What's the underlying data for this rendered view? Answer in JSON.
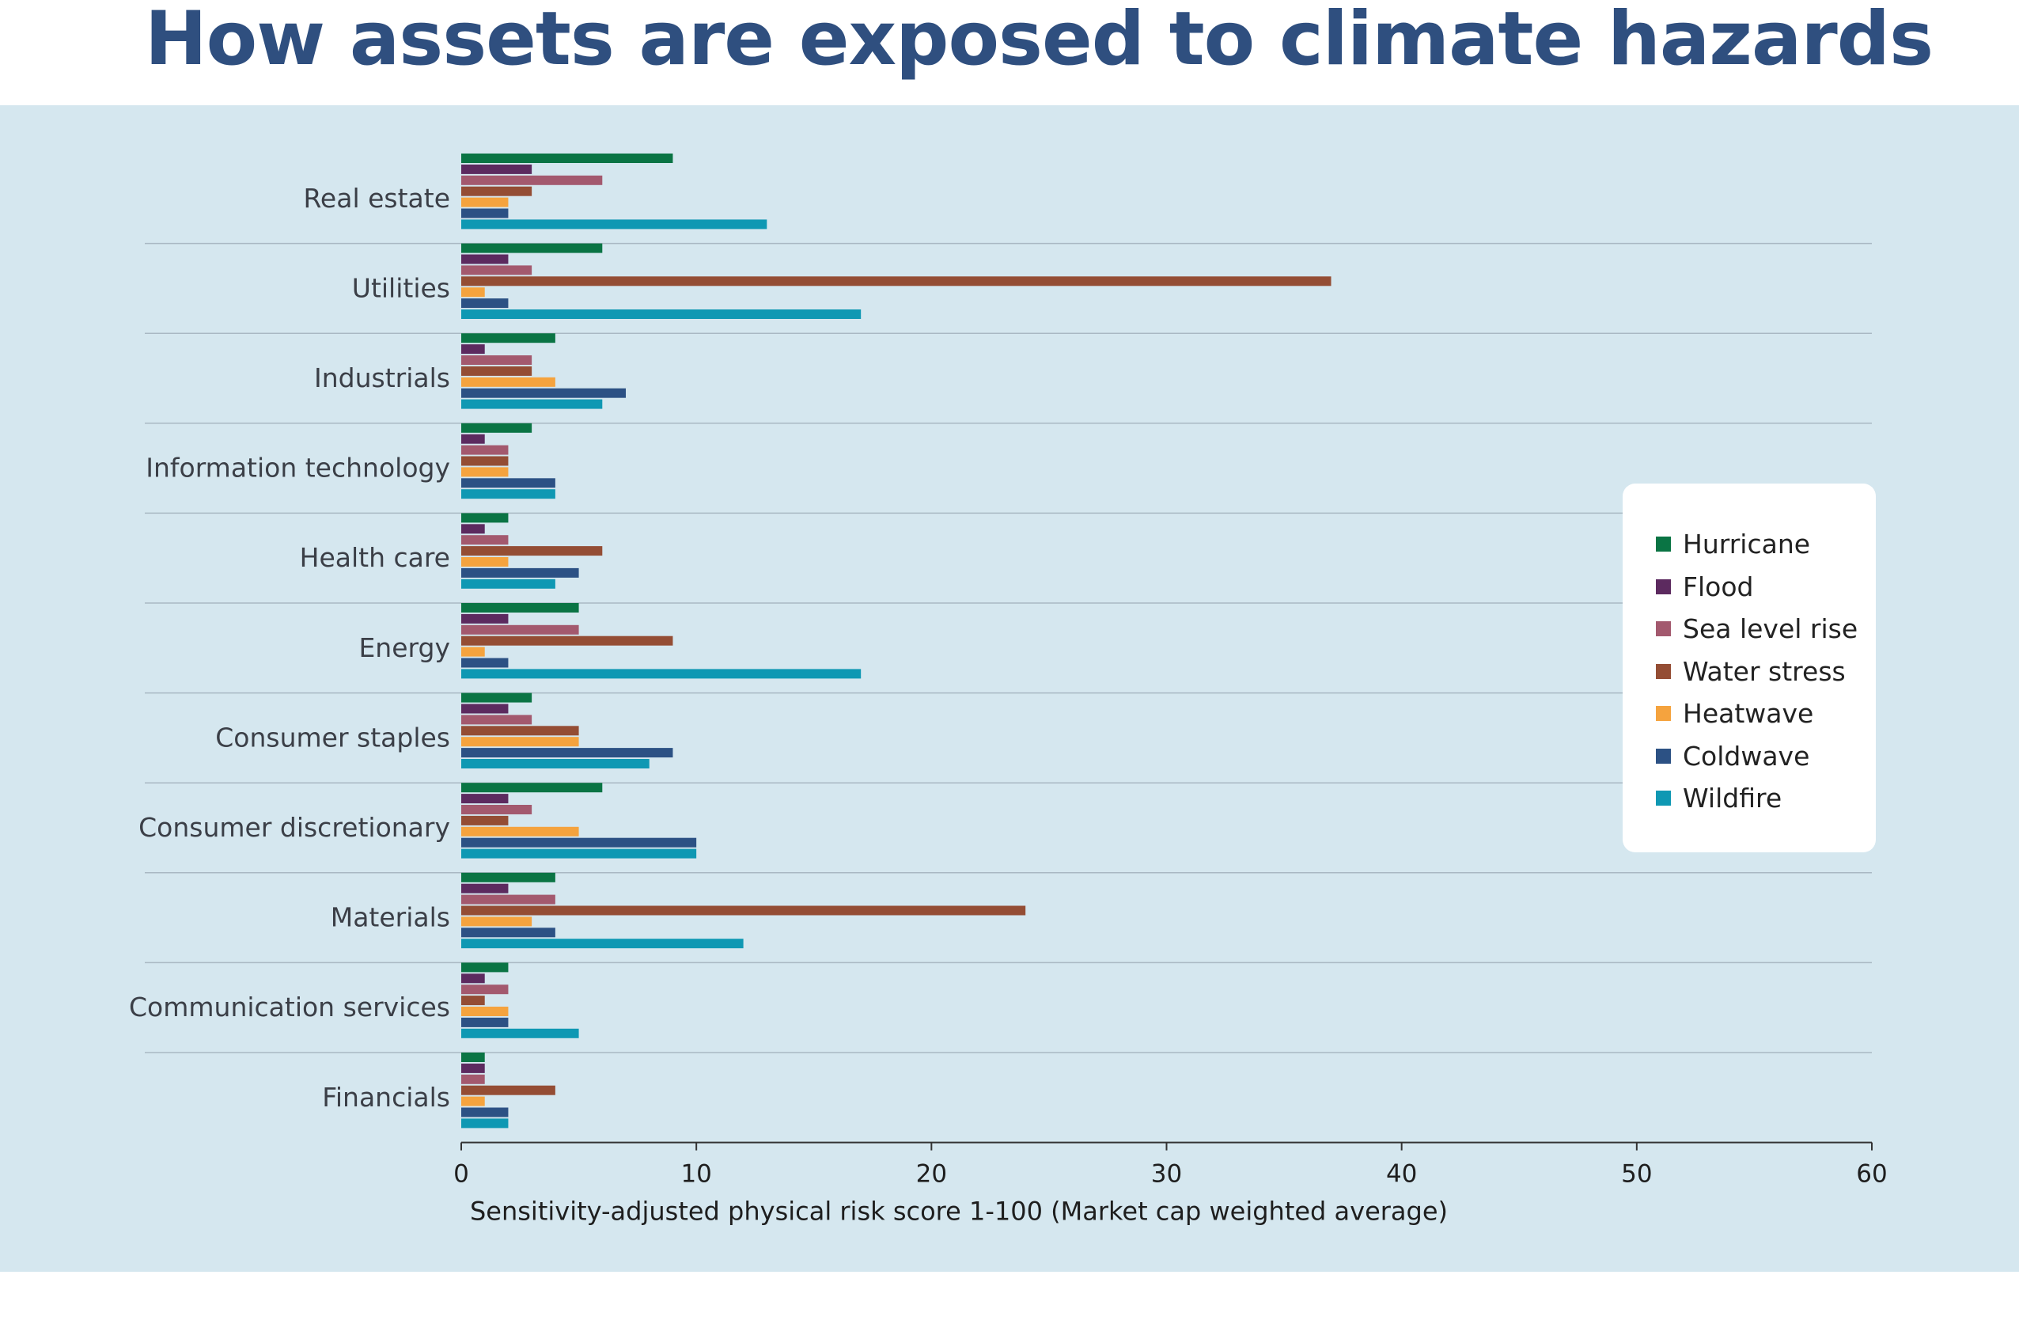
{
  "title": "How assets are exposed to climate hazards",
  "chart_data": {
    "type": "bar",
    "orientation": "horizontal",
    "title": "How assets are exposed to climate hazards",
    "xlabel": "Sensitivity-adjusted physical risk score 1-100 (Market cap weighted average)",
    "ylabel": "",
    "xlim": [
      0,
      60
    ],
    "xticks": [
      "0",
      "10",
      "20",
      "30",
      "40",
      "50",
      "60"
    ],
    "grid": false,
    "legend_position": "right",
    "categories": [
      "Real estate",
      "Utilities",
      "Industrials",
      "Information technology",
      "Health care",
      "Energy",
      "Consumer staples",
      "Consumer discretionary",
      "Materials",
      "Communication services",
      "Financials"
    ],
    "series": [
      {
        "name": "Hurricane",
        "color": "#0a7444",
        "values": [
          9,
          6,
          4,
          3,
          2,
          5,
          3,
          6,
          4,
          2,
          1
        ]
      },
      {
        "name": "Flood",
        "color": "#5c2a5f",
        "values": [
          3,
          2,
          1,
          1,
          1,
          2,
          2,
          2,
          2,
          1,
          1
        ]
      },
      {
        "name": "Sea level rise",
        "color": "#a3596e",
        "values": [
          6,
          3,
          3,
          2,
          2,
          5,
          3,
          3,
          4,
          2,
          1
        ]
      },
      {
        "name": "Water stress",
        "color": "#944d34",
        "values": [
          3,
          37,
          3,
          2,
          6,
          9,
          5,
          2,
          24,
          1,
          4
        ]
      },
      {
        "name": "Heatwave",
        "color": "#f5a33e",
        "values": [
          2,
          1,
          4,
          2,
          2,
          1,
          5,
          5,
          3,
          2,
          1
        ]
      },
      {
        "name": "Coldwave",
        "color": "#2c5184",
        "values": [
          2,
          2,
          7,
          4,
          5,
          2,
          9,
          10,
          4,
          2,
          2
        ]
      },
      {
        "name": "Wildfire",
        "color": "#0f98b3",
        "values": [
          13,
          17,
          6,
          4,
          4,
          17,
          8,
          10,
          12,
          5,
          2
        ]
      }
    ]
  },
  "colors": {
    "title": "#2f4f7f",
    "panel_background": "#d5e7ef",
    "separator": "#a9b8c3",
    "legend_background": "#ffffff"
  }
}
